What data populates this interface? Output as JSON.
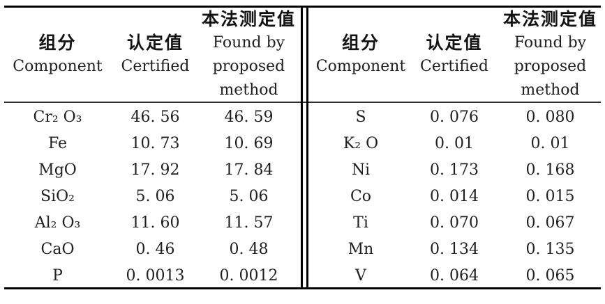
{
  "page": {
    "background": "#ffffff",
    "text_color": "#1f1f1f",
    "rule_color": "#000000"
  },
  "header": {
    "component_zh": "组分",
    "component_en": "Component",
    "certified_zh": "认定值",
    "certified_en": "Certified",
    "found_zh": "本法测定值",
    "found_en1": "Found by",
    "found_en2": "proposed",
    "found_en3": "method"
  },
  "table": {
    "left": {
      "rows": [
        {
          "component": "Cr₂ O₃",
          "certified": "46. 56",
          "found": "46. 59"
        },
        {
          "component": "Fe",
          "certified": "10. 73",
          "found": "10. 69"
        },
        {
          "component": "MgO",
          "certified": "17. 92",
          "found": "17. 84"
        },
        {
          "component": "SiO₂",
          "certified": "5. 06",
          "found": "5. 06"
        },
        {
          "component": "Al₂ O₃",
          "certified": "11. 60",
          "found": "11. 57"
        },
        {
          "component": "CaO",
          "certified": "0. 46",
          "found": "0. 48"
        },
        {
          "component": "P",
          "certified": "0. 0013",
          "found": "0. 0012"
        }
      ]
    },
    "right": {
      "rows": [
        {
          "component": "S",
          "certified": "0. 076",
          "found": "0. 080"
        },
        {
          "component": "K₂ O",
          "certified": "0. 01",
          "found": "0. 01"
        },
        {
          "component": "Ni",
          "certified": "0. 173",
          "found": "0. 168"
        },
        {
          "component": "Co",
          "certified": "0. 014",
          "found": "0. 015"
        },
        {
          "component": "Ti",
          "certified": "0. 070",
          "found": "0. 067"
        },
        {
          "component": "Mn",
          "certified": "0. 134",
          "found": "0. 135"
        },
        {
          "component": "V",
          "certified": "0. 064",
          "found": "0. 065"
        }
      ]
    }
  }
}
